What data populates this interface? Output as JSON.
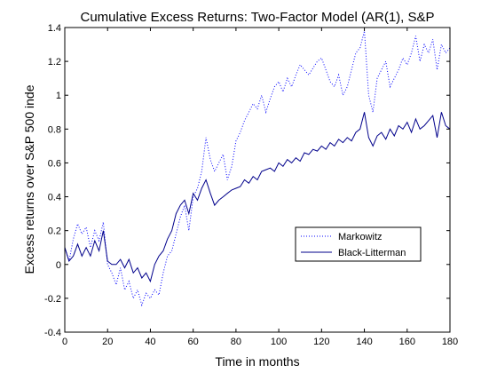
{
  "chart_data": {
    "type": "line",
    "title": "Cumulative Excess Returns: Two-Factor Model (AR(1), S&P",
    "xlabel": "Time in months",
    "ylabel": "Excess returns over S&P 500 inde",
    "xlim": [
      0,
      180
    ],
    "ylim": [
      -0.4,
      1.4
    ],
    "xticks": [
      0,
      20,
      40,
      60,
      80,
      100,
      120,
      140,
      160,
      180
    ],
    "yticks": [
      -0.4,
      -0.2,
      0,
      0.2,
      0.4,
      0.6,
      0.8,
      1,
      1.2,
      1.4
    ],
    "xtick_labels": [
      "0",
      "20",
      "40",
      "60",
      "80",
      "100",
      "120",
      "140",
      "160",
      "180"
    ],
    "ytick_labels": [
      "-0.4",
      "-0.2",
      "0",
      "0.2",
      "0.4",
      "0.6",
      "0.8",
      "1",
      "1.2",
      "1.4"
    ],
    "grid": false,
    "legend_position": "center-right",
    "series": [
      {
        "name": "Markowitz",
        "color": "#0000ff",
        "style": "dotted",
        "x": [
          0,
          2,
          4,
          6,
          8,
          10,
          12,
          14,
          16,
          18,
          20,
          22,
          24,
          26,
          28,
          30,
          32,
          34,
          36,
          38,
          40,
          42,
          44,
          46,
          48,
          50,
          52,
          54,
          56,
          58,
          60,
          62,
          64,
          66,
          68,
          70,
          72,
          74,
          76,
          78,
          80,
          82,
          84,
          86,
          88,
          90,
          92,
          94,
          96,
          98,
          100,
          102,
          104,
          106,
          108,
          110,
          112,
          114,
          116,
          118,
          120,
          122,
          124,
          126,
          128,
          130,
          132,
          134,
          136,
          138,
          140,
          142,
          144,
          146,
          148,
          150,
          152,
          154,
          156,
          158,
          160,
          162,
          164,
          166,
          168,
          170,
          172,
          174,
          176,
          178,
          180
        ],
        "y": [
          0.1,
          0.02,
          0.15,
          0.24,
          0.18,
          0.22,
          0.1,
          0.2,
          0.14,
          0.25,
          0.0,
          -0.05,
          -0.12,
          -0.02,
          -0.15,
          -0.1,
          -0.2,
          -0.15,
          -0.24,
          -0.17,
          -0.2,
          -0.15,
          -0.18,
          -0.05,
          0.05,
          0.08,
          0.18,
          0.28,
          0.35,
          0.2,
          0.4,
          0.45,
          0.55,
          0.75,
          0.62,
          0.55,
          0.6,
          0.65,
          0.5,
          0.58,
          0.73,
          0.78,
          0.85,
          0.9,
          0.95,
          0.92,
          1.0,
          0.9,
          0.98,
          1.05,
          1.08,
          1.02,
          1.1,
          1.05,
          1.12,
          1.18,
          1.15,
          1.12,
          1.16,
          1.2,
          1.22,
          1.15,
          1.08,
          1.05,
          1.12,
          1.0,
          1.05,
          1.15,
          1.25,
          1.28,
          1.38,
          1.0,
          0.9,
          1.1,
          1.15,
          1.2,
          1.05,
          1.1,
          1.15,
          1.22,
          1.18,
          1.25,
          1.35,
          1.2,
          1.3,
          1.25,
          1.33,
          1.15,
          1.3,
          1.25,
          1.28
        ]
      },
      {
        "name": "Black-Litterman",
        "color": "#00008b",
        "style": "solid",
        "x": [
          0,
          2,
          4,
          6,
          8,
          10,
          12,
          14,
          16,
          18,
          20,
          22,
          24,
          26,
          28,
          30,
          32,
          34,
          36,
          38,
          40,
          42,
          44,
          46,
          48,
          50,
          52,
          54,
          56,
          58,
          60,
          62,
          64,
          66,
          68,
          70,
          72,
          74,
          76,
          78,
          80,
          82,
          84,
          86,
          88,
          90,
          92,
          94,
          96,
          98,
          100,
          102,
          104,
          106,
          108,
          110,
          112,
          114,
          116,
          118,
          120,
          122,
          124,
          126,
          128,
          130,
          132,
          134,
          136,
          138,
          140,
          142,
          144,
          146,
          148,
          150,
          152,
          154,
          156,
          158,
          160,
          162,
          164,
          166,
          168,
          170,
          172,
          174,
          176,
          178,
          180
        ],
        "y": [
          0.1,
          0.02,
          0.05,
          0.12,
          0.05,
          0.1,
          0.05,
          0.14,
          0.08,
          0.2,
          0.02,
          0.0,
          0.0,
          0.03,
          -0.02,
          0.03,
          -0.05,
          -0.02,
          -0.08,
          -0.05,
          -0.1,
          0.0,
          0.05,
          0.08,
          0.15,
          0.2,
          0.3,
          0.35,
          0.38,
          0.3,
          0.42,
          0.38,
          0.45,
          0.5,
          0.42,
          0.35,
          0.38,
          0.4,
          0.42,
          0.44,
          0.45,
          0.46,
          0.5,
          0.48,
          0.52,
          0.5,
          0.55,
          0.56,
          0.57,
          0.55,
          0.6,
          0.58,
          0.62,
          0.6,
          0.63,
          0.61,
          0.66,
          0.65,
          0.68,
          0.67,
          0.7,
          0.68,
          0.72,
          0.7,
          0.74,
          0.72,
          0.75,
          0.73,
          0.78,
          0.8,
          0.9,
          0.75,
          0.7,
          0.76,
          0.78,
          0.74,
          0.8,
          0.76,
          0.82,
          0.8,
          0.84,
          0.78,
          0.86,
          0.8,
          0.82,
          0.85,
          0.88,
          0.75,
          0.9,
          0.82,
          0.8
        ]
      }
    ]
  }
}
